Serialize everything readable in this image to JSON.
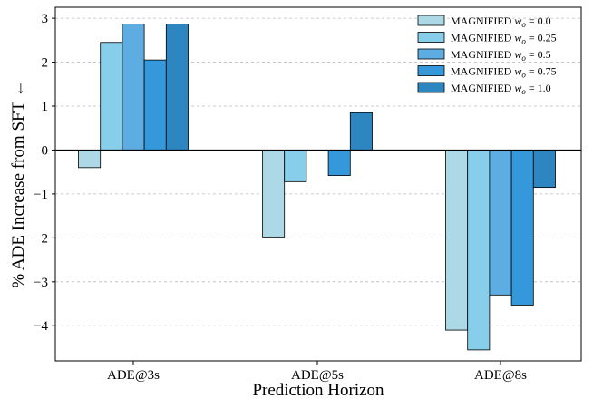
{
  "chart_data": {
    "type": "bar",
    "xlabel": "Prediction Horizon",
    "ylabel": "% ADE Increase from SFT ←",
    "categories": [
      "ADE@3s",
      "ADE@5s",
      "ADE@8s"
    ],
    "ylim": [
      -4.8,
      3.25
    ],
    "yticks": [
      -4,
      -3,
      -2,
      -1,
      0,
      1,
      2,
      3
    ],
    "grid": "horizontal dashed",
    "legend_position": "top-right",
    "series": [
      {
        "name": "MAGNIFIED w_o = 0.0",
        "label_prefix": "MAGNIFIED ",
        "label_var": "w",
        "label_sub": "o",
        "label_rest": " = 0.0",
        "color": "#add8e6",
        "values": [
          -0.4,
          -1.98,
          -4.1
        ]
      },
      {
        "name": "MAGNIFIED w_o = 0.25",
        "label_prefix": "MAGNIFIED ",
        "label_var": "w",
        "label_sub": "o",
        "label_rest": " = 0.25",
        "color": "#87ceeb",
        "values": [
          2.45,
          -0.72,
          -4.55
        ]
      },
      {
        "name": "MAGNIFIED w_o = 0.5",
        "label_prefix": "MAGNIFIED ",
        "label_var": "w",
        "label_sub": "o",
        "label_rest": " = 0.5",
        "color": "#5dade2",
        "values": [
          2.87,
          0.0,
          -3.3
        ]
      },
      {
        "name": "MAGNIFIED w_o = 0.75",
        "label_prefix": "MAGNIFIED ",
        "label_var": "w",
        "label_sub": "o",
        "label_rest": " = 0.75",
        "color": "#3498db",
        "values": [
          2.05,
          -0.58,
          -3.53
        ]
      },
      {
        "name": "MAGNIFIED w_o = 1.0",
        "label_prefix": "MAGNIFIED ",
        "label_var": "w",
        "label_sub": "o",
        "label_rest": " = 1.0",
        "color": "#2e86c1",
        "values": [
          2.87,
          0.85,
          -0.85
        ]
      }
    ]
  }
}
